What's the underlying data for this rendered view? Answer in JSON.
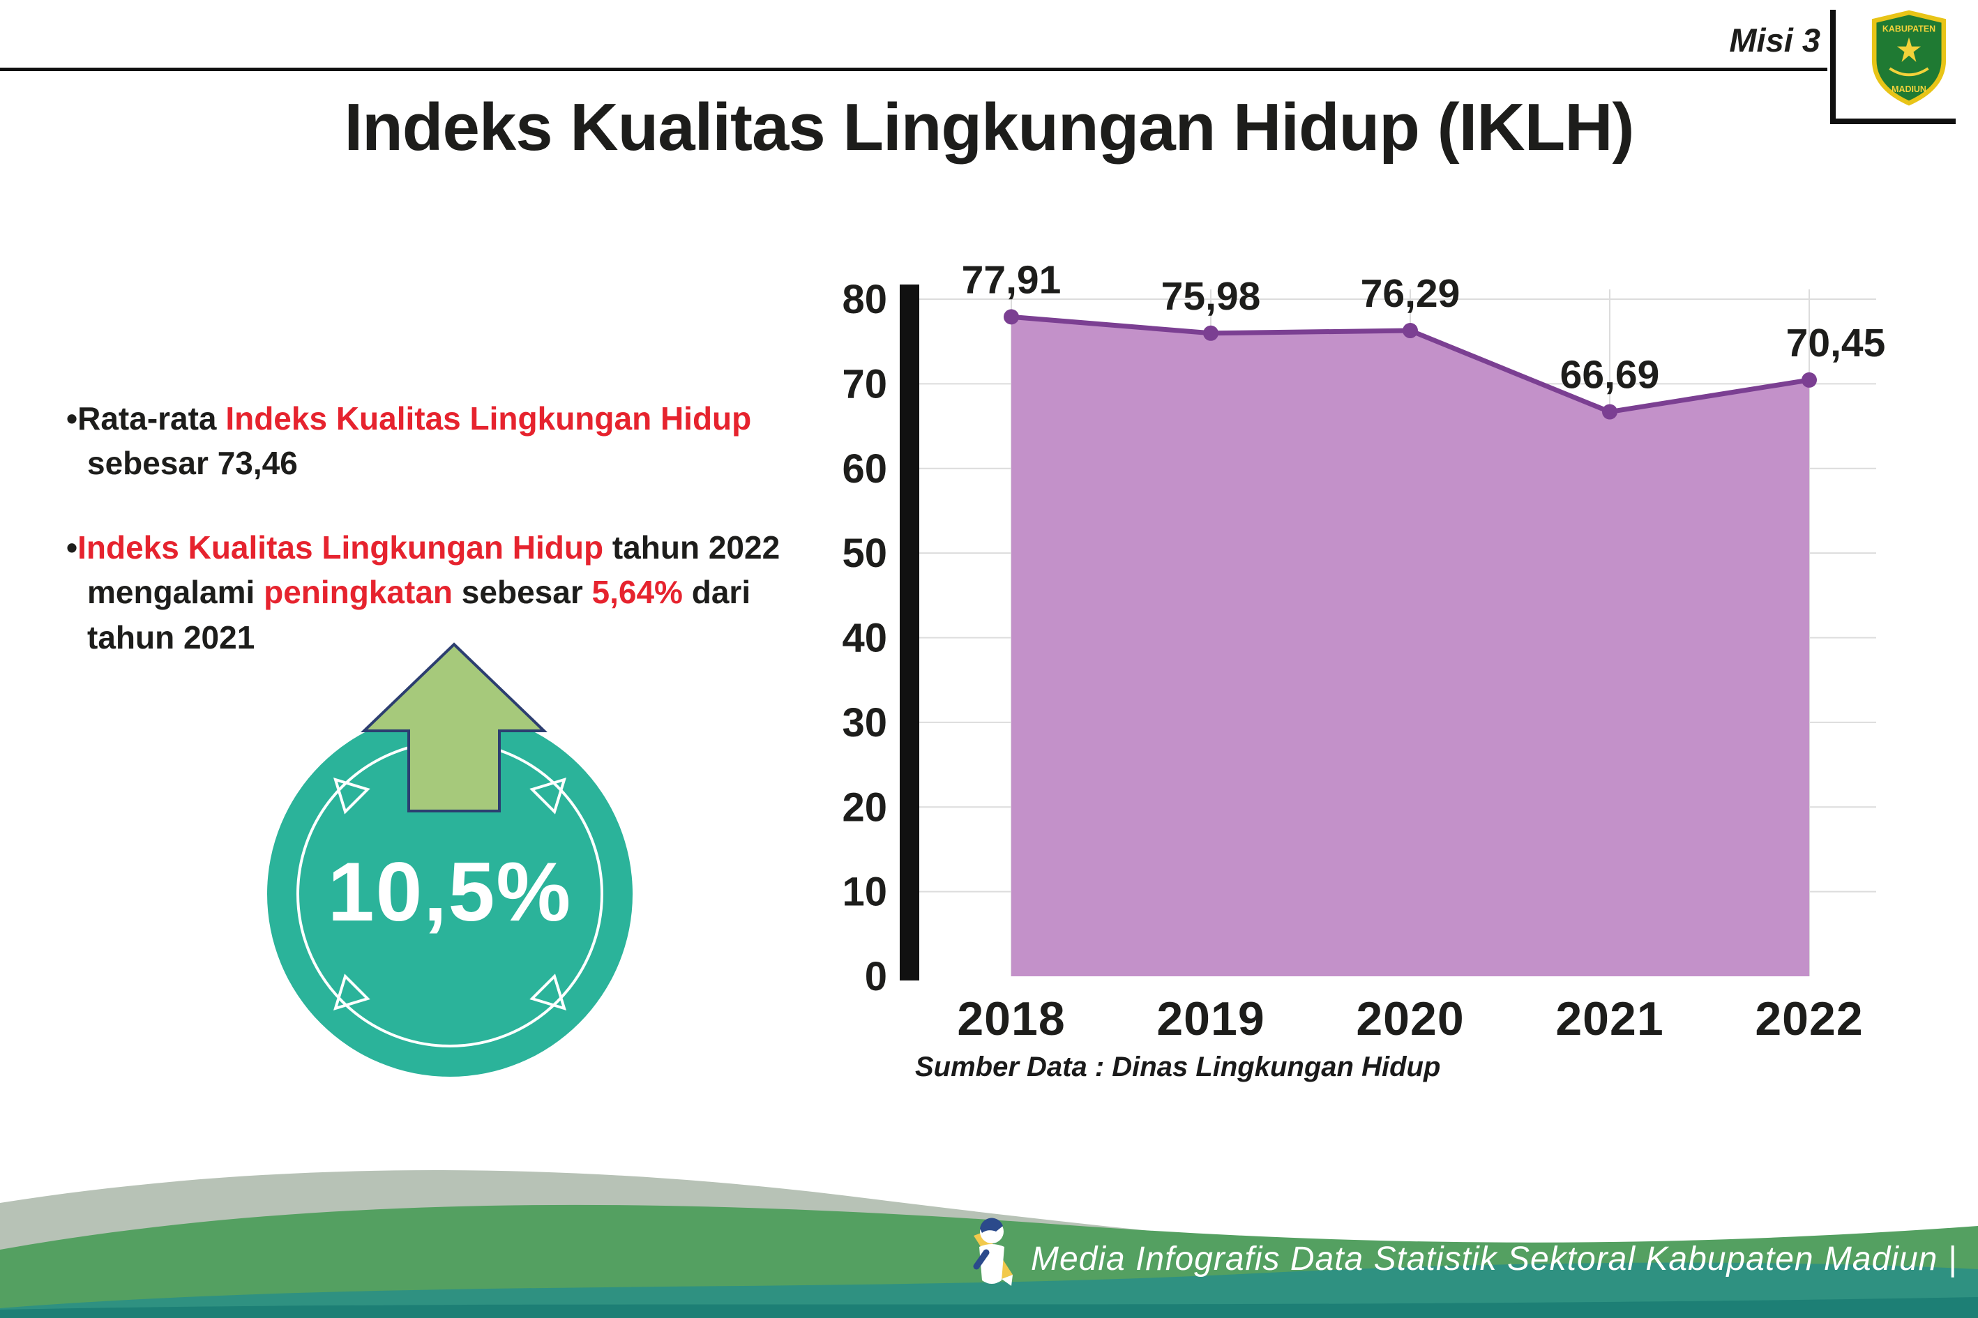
{
  "header": {
    "misi_label": "Misi 3",
    "title": "Indeks Kualitas Lingkungan Hidup (IKLH)",
    "logo": {
      "top_text": "KABUPATEN",
      "bottom_text": "MADIUN"
    }
  },
  "bullets": {
    "items": [
      {
        "segments": [
          {
            "text": "Rata-rata ",
            "color": "dark"
          },
          {
            "text": "Indeks Kualitas Lingkungan Hidup",
            "color": "red"
          },
          {
            "text": "\nsebesar 73,46",
            "color": "dark"
          }
        ]
      },
      {
        "segments": [
          {
            "text": "Indeks Kualitas Lingkungan Hidup",
            "color": "red"
          },
          {
            "text": " tahun 2022\nmengalami ",
            "color": "dark"
          },
          {
            "text": "peningkatan",
            "color": "red"
          },
          {
            "text": " sebesar ",
            "color": "dark"
          },
          {
            "text": "5,64%",
            "color": "red"
          },
          {
            "text": " dari\ntahun 2021",
            "color": "dark"
          }
        ]
      }
    ]
  },
  "badge": {
    "value": "10,5%"
  },
  "chart_data": {
    "type": "area",
    "title": "Indeks Kualitas Lingkungan Hidup (IKLH)",
    "categories": [
      "2018",
      "2019",
      "2020",
      "2021",
      "2022"
    ],
    "values": [
      77.91,
      75.98,
      76.29,
      66.69,
      70.45
    ],
    "point_labels": [
      "77,91",
      "75,98",
      "76,29",
      "66,69",
      "70,45"
    ],
    "xlabel": "",
    "ylabel": "",
    "ylim": [
      0,
      80
    ],
    "yticks": [
      0,
      10,
      20,
      30,
      40,
      50,
      60,
      70,
      80
    ],
    "grid": true,
    "legend_position": "none",
    "source": "Sumber Data : Dinas Lingkungan Hidup",
    "colors": {
      "area": "#c391c9",
      "line": "#7b3f92",
      "grid": "#dcdcdc",
      "axis": "#111111"
    }
  },
  "footer": {
    "credit": "Media Infografis Data Statistik Sektoral Kabupaten Madiun |"
  },
  "colors": {
    "red": "#e6232e",
    "dark": "#1d1d1b",
    "badge_teal": "#2bb39a",
    "arrow_green": "#a6c97b",
    "arrow_outline": "#2c3e70",
    "footer_sage": "#b7c2b6",
    "footer_green": "#54a061",
    "footer_teal": "#2f9181",
    "footer_dark": "#1d7f75"
  }
}
